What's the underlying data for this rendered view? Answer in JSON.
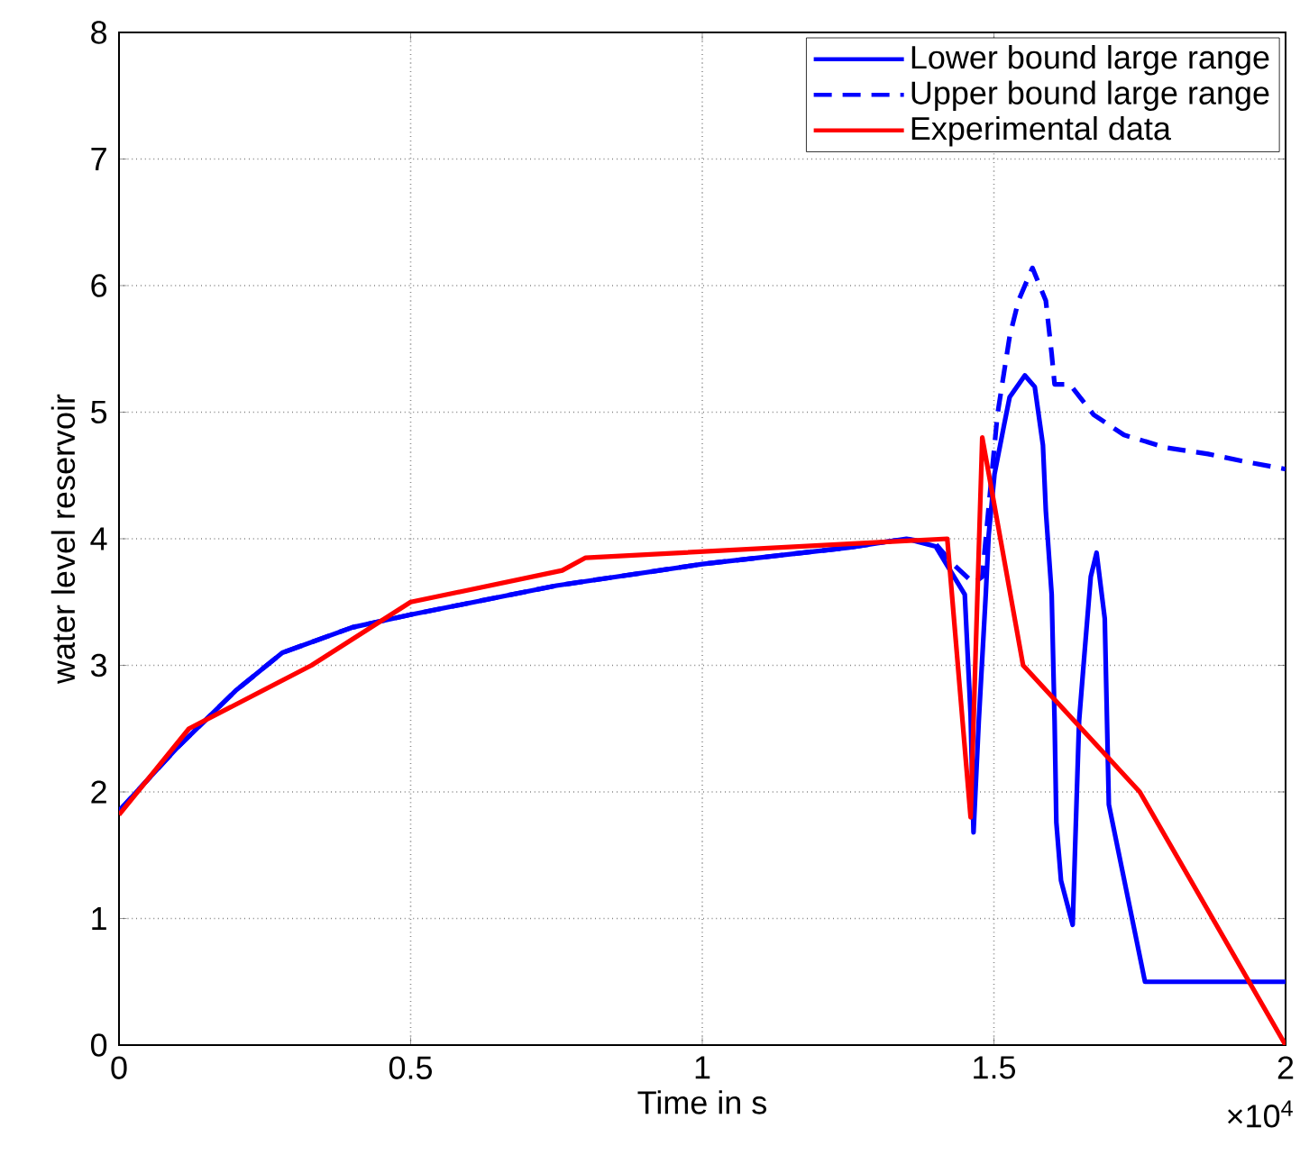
{
  "chart_data": {
    "type": "line",
    "xlabel": "Time in s",
    "ylabel": "water level reservoir",
    "annotations": [
      "×10$^{4}$"
    ],
    "xlim": [
      0,
      2
    ],
    "ylim": [
      0,
      8
    ],
    "xticks": [
      0,
      0.5,
      1,
      1.5,
      2
    ],
    "yticks": [
      0,
      1,
      2,
      3,
      4,
      5,
      6,
      7,
      8
    ],
    "grid": true,
    "legend": "top right",
    "marker": "none",
    "series": [
      {
        "name": "Lower bound large range",
        "color": "#0000ff",
        "line_style": "solid",
        "x": [
          0,
          0.1,
          0.2,
          0.28,
          0.4,
          0.5,
          0.75,
          1.0,
          1.25,
          1.35,
          1.4,
          1.45,
          1.46,
          1.465,
          1.474,
          1.486,
          1.491,
          1.501,
          1.517,
          1.527,
          1.553,
          1.57,
          1.584,
          1.589,
          1.599,
          1.604,
          1.607,
          1.615,
          1.635,
          1.646,
          1.655,
          1.666,
          1.676,
          1.69,
          1.697,
          1.759,
          2.0
        ],
        "values": [
          1.85,
          2.35,
          2.8,
          3.1,
          3.3,
          3.4,
          3.63,
          3.8,
          3.93,
          4.0,
          3.94,
          3.56,
          2.61,
          1.68,
          2.56,
          3.56,
          4.03,
          4.51,
          4.89,
          5.12,
          5.29,
          5.2,
          4.74,
          4.22,
          3.56,
          2.56,
          1.76,
          1.3,
          0.95,
          2.56,
          3.08,
          3.7,
          3.89,
          3.37,
          1.9,
          0.5,
          0.5
        ]
      },
      {
        "name": "Upper bound large range",
        "color": "#0000ff",
        "line_style": "dashed",
        "x": [
          0,
          0.1,
          0.2,
          0.28,
          0.4,
          0.5,
          0.75,
          1.0,
          1.25,
          1.35,
          1.4,
          1.43,
          1.465,
          1.48,
          1.49,
          1.506,
          1.527,
          1.542,
          1.566,
          1.589,
          1.599,
          1.604,
          1.63,
          1.671,
          1.723,
          1.795,
          1.867,
          1.93,
          2.0
        ],
        "values": [
          1.85,
          2.35,
          2.8,
          3.1,
          3.3,
          3.4,
          3.63,
          3.8,
          3.93,
          4.0,
          3.96,
          3.8,
          3.65,
          3.7,
          4.2,
          4.98,
          5.6,
          5.88,
          6.14,
          5.88,
          5.46,
          5.22,
          5.22,
          4.98,
          4.82,
          4.72,
          4.67,
          4.61,
          4.55
        ]
      },
      {
        "name": "Experimental data",
        "color": "#ff0000",
        "line_style": "solid",
        "x": [
          0,
          0.12,
          0.33,
          0.5,
          0.76,
          0.8,
          1.42,
          1.46,
          1.48,
          1.55,
          1.75,
          2.0
        ],
        "values": [
          1.82,
          2.5,
          3.0,
          3.5,
          3.75,
          3.85,
          4.0,
          1.8,
          4.8,
          3.0,
          2.0,
          0.0
        ]
      }
    ]
  }
}
